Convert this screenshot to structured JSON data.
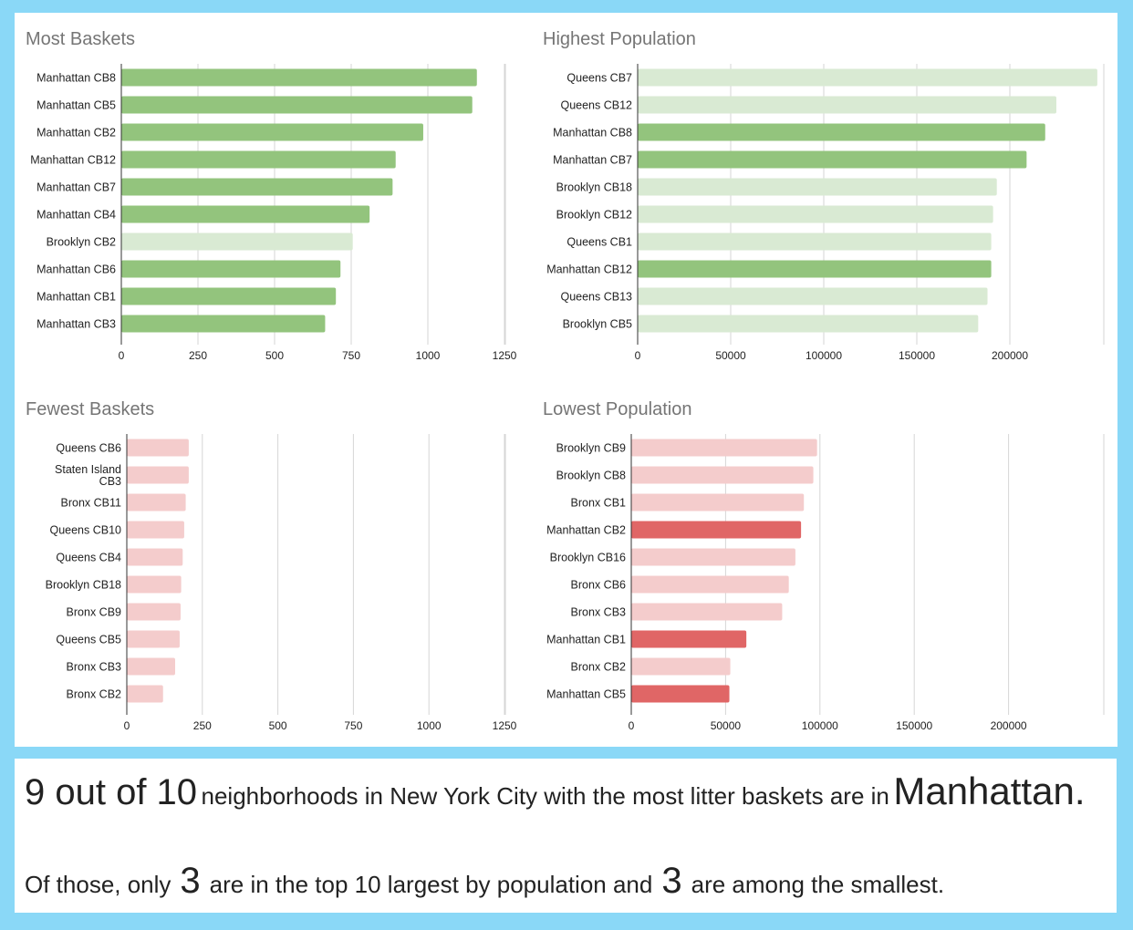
{
  "chart_data": [
    {
      "id": "most_baskets",
      "type": "bar",
      "orientation": "horizontal",
      "title": "Most Baskets",
      "xlim": [
        0,
        1250
      ],
      "ticks": [
        0,
        250,
        500,
        750,
        1000,
        1250
      ],
      "categories": [
        "Manhattan CB8",
        "Manhattan CB5",
        "Manhattan CB2",
        "Manhattan CB12",
        "Manhattan CB7",
        "Manhattan CB4",
        "Brooklyn CB2",
        "Manhattan CB6",
        "Manhattan CB1",
        "Manhattan CB3"
      ],
      "values": [
        1160,
        1145,
        985,
        895,
        885,
        810,
        755,
        715,
        700,
        665
      ],
      "highlight": [
        true,
        true,
        true,
        true,
        true,
        true,
        false,
        true,
        true,
        true
      ],
      "colors": {
        "highlight": "#93c47d",
        "normal": "#d9ead3"
      },
      "grid": true
    },
    {
      "id": "highest_population",
      "type": "bar",
      "orientation": "horizontal",
      "title": "Highest Population",
      "xlim": [
        0,
        250000
      ],
      "ticks": [
        0,
        50000,
        100000,
        150000,
        200000
      ],
      "categories": [
        "Queens CB7",
        "Queens CB12",
        "Manhattan CB8",
        "Manhattan CB7",
        "Brooklyn CB18",
        "Brooklyn CB12",
        "Queens CB1",
        "Manhattan CB12",
        "Queens CB13",
        "Brooklyn CB5"
      ],
      "values": [
        247000,
        225000,
        219000,
        209000,
        193000,
        191000,
        190000,
        190000,
        188000,
        183000
      ],
      "highlight": [
        false,
        false,
        true,
        true,
        false,
        false,
        false,
        true,
        false,
        false
      ],
      "colors": {
        "highlight": "#93c47d",
        "normal": "#d9ead3"
      },
      "grid": true
    },
    {
      "id": "fewest_baskets",
      "type": "bar",
      "orientation": "horizontal",
      "title": "Fewest Baskets",
      "xlim": [
        0,
        1250
      ],
      "ticks": [
        0,
        250,
        500,
        750,
        1000,
        1250
      ],
      "categories": [
        "Queens CB6",
        "Staten Island CB3",
        "Bronx CB11",
        "Queens CB10",
        "Queens CB4",
        "Brooklyn CB18",
        "Bronx CB9",
        "Queens CB5",
        "Bronx CB3",
        "Bronx CB2"
      ],
      "values": [
        205,
        205,
        195,
        190,
        185,
        180,
        178,
        175,
        160,
        120
      ],
      "highlight": [
        false,
        false,
        false,
        false,
        false,
        false,
        false,
        false,
        false,
        false
      ],
      "colors": {
        "highlight": "#e06666",
        "normal": "#f4cccc"
      },
      "grid": true
    },
    {
      "id": "lowest_population",
      "type": "bar",
      "orientation": "horizontal",
      "title": "Lowest Population",
      "xlim": [
        0,
        250000
      ],
      "ticks": [
        0,
        50000,
        100000,
        150000,
        200000
      ],
      "categories": [
        "Brooklyn CB9",
        "Brooklyn CB8",
        "Bronx CB1",
        "Manhattan CB2",
        "Brooklyn CB16",
        "Bronx CB6",
        "Bronx CB3",
        "Manhattan CB1",
        "Bronx CB2",
        "Manhattan CB5"
      ],
      "values": [
        98500,
        96500,
        91500,
        90000,
        87000,
        83500,
        80000,
        61000,
        52500,
        52000
      ],
      "highlight": [
        false,
        false,
        false,
        true,
        false,
        false,
        false,
        true,
        false,
        true
      ],
      "colors": {
        "highlight": "#e06666",
        "normal": "#f4cccc"
      },
      "grid": true
    }
  ],
  "summary": {
    "line1": {
      "count": "9 out of 10",
      "text": "neighborhoods in New York City with the most litter baskets are in",
      "borough": "Manhattan."
    },
    "line2": {
      "prefix": "Of those, only",
      "n_largest": "3",
      "middle": "are in the top 10 largest by population and",
      "n_smallest": "3",
      "suffix": "are among the smallest."
    }
  }
}
